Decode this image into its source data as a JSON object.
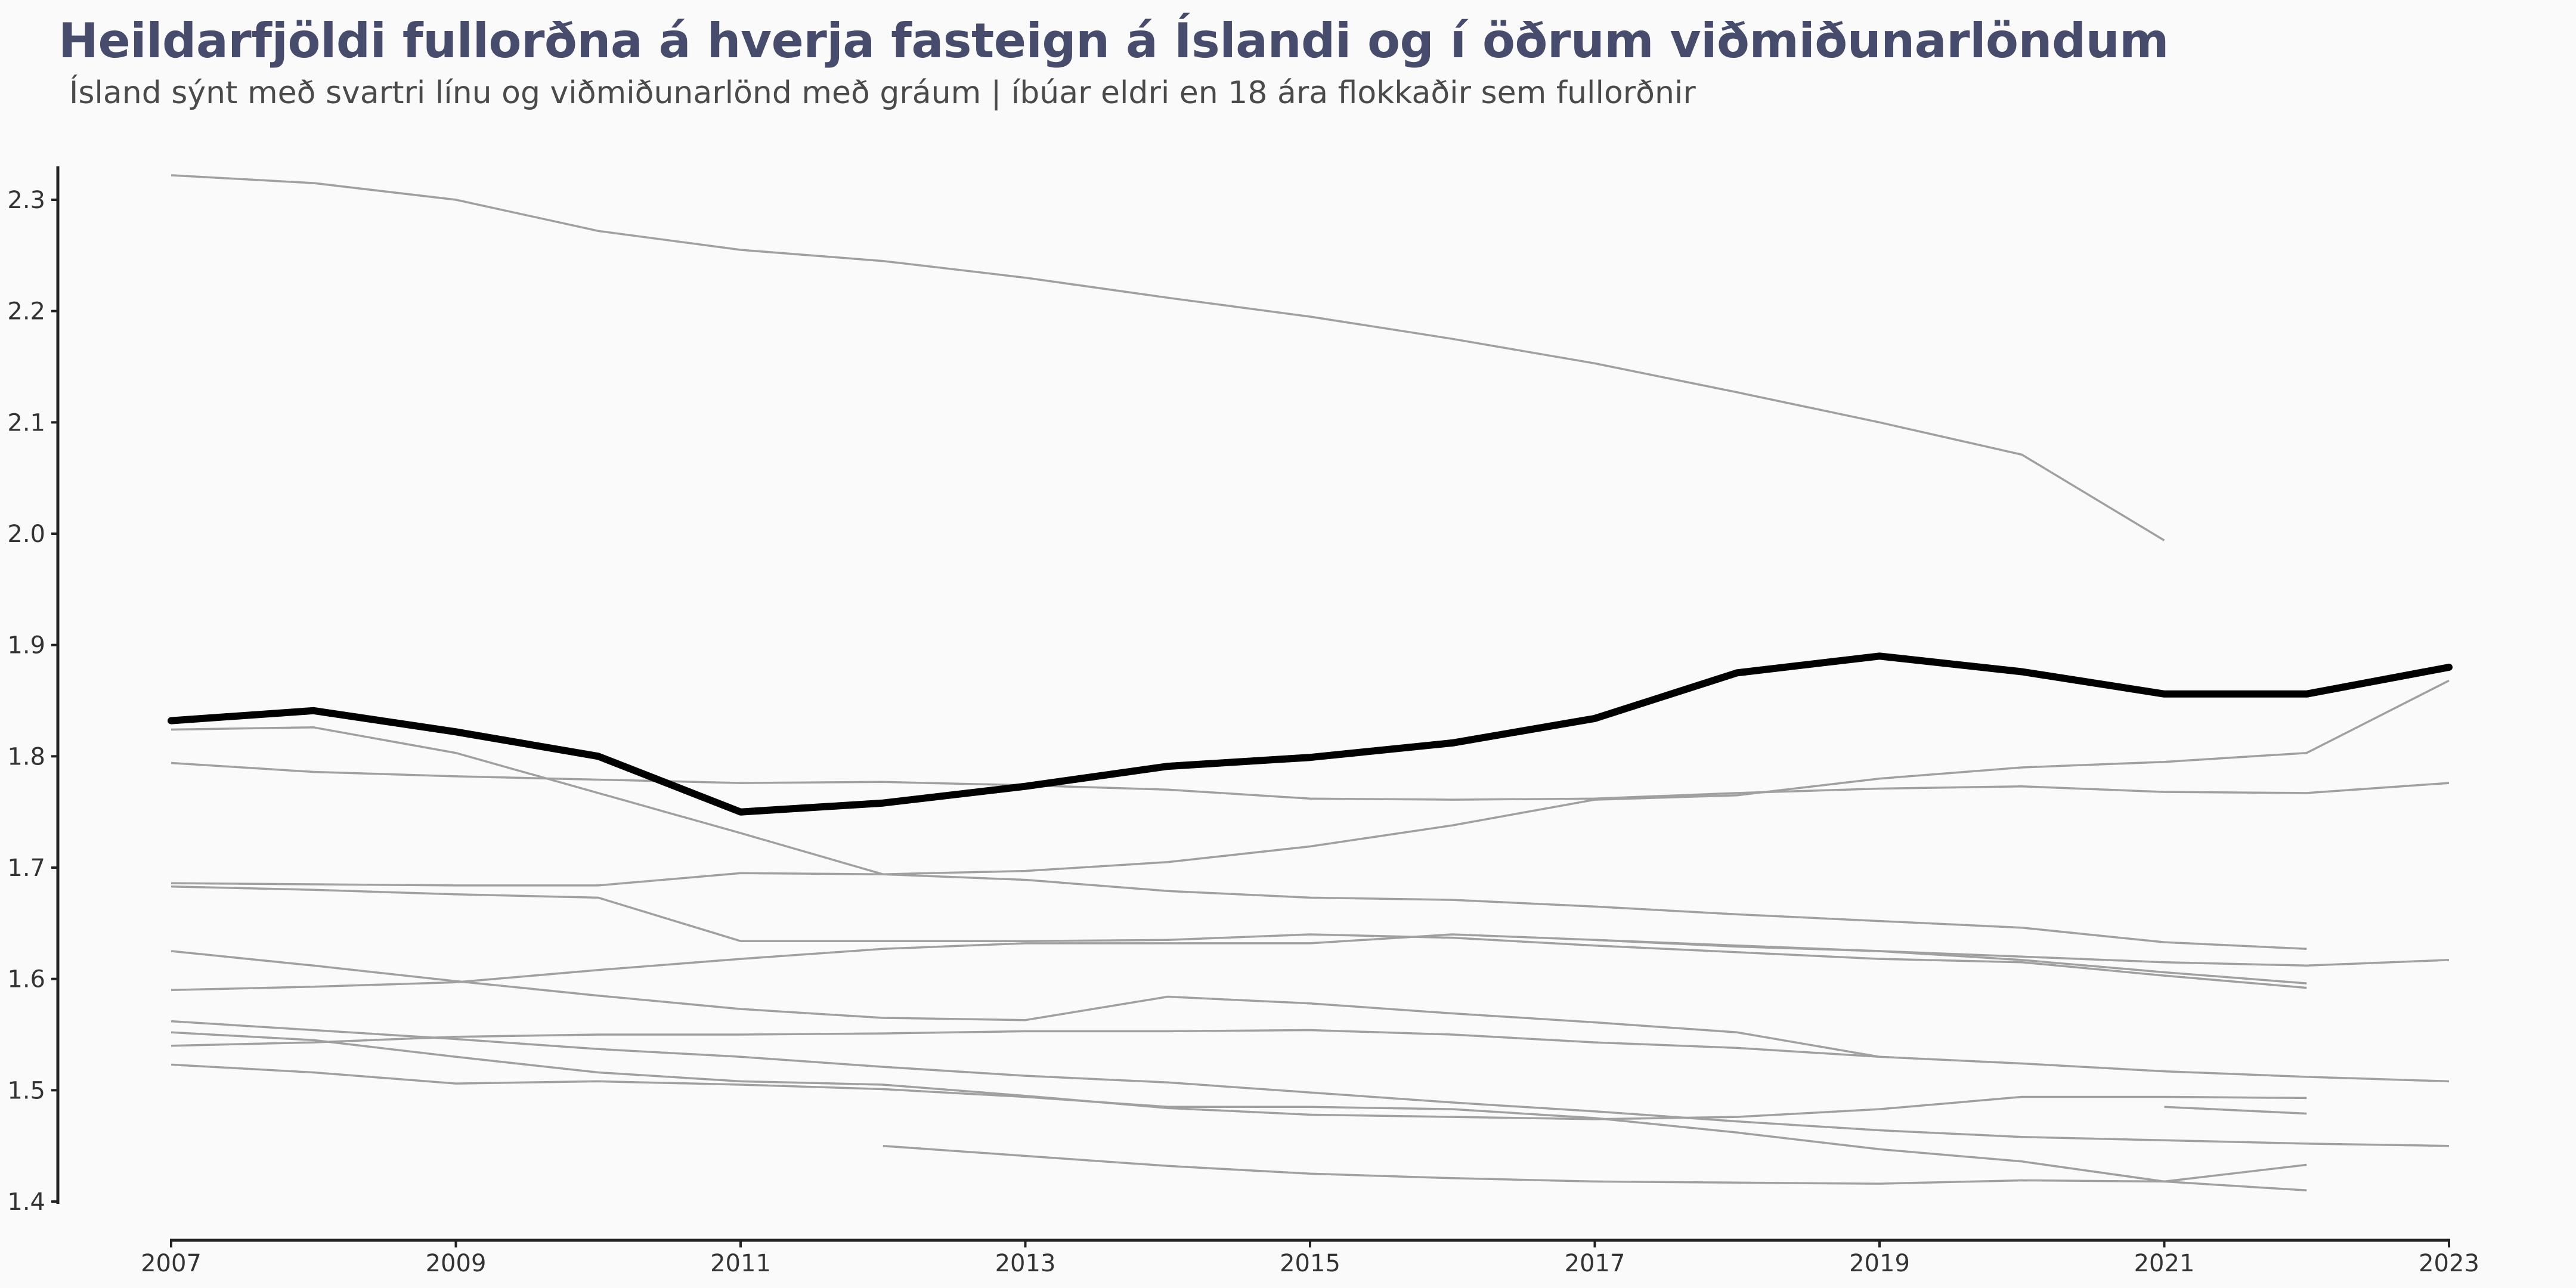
{
  "chart_data": {
    "type": "line",
    "title": "Heildarfjöldi fullorðna á hverja fasteign á Íslandi og í öðrum viðmiðunarlöndum",
    "subtitle": "Ísland sýnt með svartri línu og viðmiðunarlönd með gráum | íbúar eldri en 18 ára flokkaðir sem fullorðnir",
    "xlabel": "",
    "ylabel": "",
    "x_ticks": [
      "2007",
      "2009",
      "2011",
      "2013",
      "2015",
      "2017",
      "2019",
      "2021",
      "2023"
    ],
    "y_ticks": [
      "1.4",
      "1.5",
      "1.6",
      "1.7",
      "1.8",
      "1.9",
      "2.0",
      "2.1",
      "2.2",
      "2.3"
    ],
    "xlim": [
      2007,
      2023
    ],
    "ylim": [
      1.4,
      2.33
    ],
    "grid": false,
    "colors": {
      "highlight": "#000000",
      "comparison": "#a0a0a0",
      "title": "#484c6c"
    },
    "highlight_series": {
      "x": [
        2007,
        2008,
        2009,
        2010,
        2011,
        2012,
        2013,
        2014,
        2015,
        2016,
        2017,
        2018,
        2019,
        2020,
        2021,
        2022,
        2023
      ],
      "values": [
        1.832,
        1.841,
        1.822,
        1.8,
        1.75,
        1.758,
        1.773,
        1.791,
        1.799,
        1.812,
        1.834,
        1.875,
        1.89,
        1.876,
        1.856,
        1.856,
        1.88
      ]
    },
    "series": [
      {
        "x": [
          2007,
          2008,
          2009,
          2010,
          2011,
          2012,
          2013,
          2014,
          2015,
          2016,
          2017,
          2018,
          2019,
          2020,
          2021
        ],
        "values": [
          2.322,
          2.315,
          2.3,
          2.272,
          2.255,
          2.245,
          2.23,
          2.212,
          2.195,
          2.175,
          2.153,
          2.127,
          2.1,
          2.071,
          1.994
        ]
      },
      {
        "x": [
          2007,
          2008,
          2009,
          2010,
          2011,
          2012,
          2013,
          2014,
          2015,
          2016,
          2017,
          2018,
          2019,
          2020,
          2021,
          2022,
          2023
        ],
        "values": [
          1.824,
          1.826,
          1.803,
          1.767,
          1.731,
          1.694,
          1.697,
          1.705,
          1.719,
          1.738,
          1.761,
          1.765,
          1.78,
          1.79,
          1.795,
          1.803,
          1.868
        ]
      },
      {
        "x": [
          2007,
          2008,
          2009,
          2010,
          2011,
          2012,
          2013,
          2014,
          2015,
          2016,
          2017,
          2018,
          2019,
          2020,
          2021,
          2022,
          2023
        ],
        "values": [
          1.794,
          1.786,
          1.782,
          1.779,
          1.776,
          1.777,
          1.774,
          1.77,
          1.762,
          1.761,
          1.762,
          1.767,
          1.771,
          1.773,
          1.768,
          1.767,
          1.776
        ]
      },
      {
        "x": [
          2007,
          2008,
          2009,
          2010,
          2011,
          2012,
          2013,
          2014,
          2015,
          2016,
          2017,
          2018,
          2019,
          2020,
          2021,
          2022
        ],
        "values": [
          1.686,
          1.685,
          1.684,
          1.684,
          1.695,
          1.694,
          1.689,
          1.679,
          1.673,
          1.671,
          1.665,
          1.658,
          1.652,
          1.646,
          1.633,
          1.627
        ]
      },
      {
        "x": [
          2007,
          2008,
          2009,
          2010,
          2011,
          2012,
          2013,
          2014,
          2015,
          2016,
          2017,
          2018,
          2019,
          2020,
          2021,
          2022
        ],
        "values": [
          1.683,
          1.68,
          1.676,
          1.673,
          1.634,
          1.634,
          1.634,
          1.635,
          1.64,
          1.637,
          1.63,
          1.624,
          1.618,
          1.615,
          1.603,
          1.592
        ]
      },
      {
        "x": [
          2007,
          2008,
          2009,
          2010,
          2011,
          2012,
          2013,
          2014,
          2015,
          2016,
          2017,
          2018,
          2019,
          2020,
          2021,
          2022,
          2023
        ],
        "values": [
          1.59,
          1.593,
          1.597,
          1.608,
          1.618,
          1.627,
          1.632,
          1.632,
          1.632,
          1.64,
          1.635,
          1.629,
          1.625,
          1.62,
          1.615,
          1.612,
          1.617
        ]
      },
      {
        "x": [
          2017,
          2018,
          2019,
          2020,
          2021,
          2022
        ],
        "values": [
          1.635,
          1.63,
          1.625,
          1.617,
          1.606,
          1.596
        ]
      },
      {
        "x": [
          2007,
          2008,
          2009,
          2010,
          2011,
          2012,
          2013,
          2014,
          2015,
          2016,
          2017,
          2018,
          2019
        ],
        "values": [
          1.625,
          1.612,
          1.598,
          1.585,
          1.573,
          1.565,
          1.563,
          1.584,
          1.578,
          1.569,
          1.561,
          1.552,
          1.53
        ]
      },
      {
        "x": [
          2007,
          2008,
          2009,
          2010,
          2011,
          2012,
          2013,
          2014,
          2015,
          2016,
          2017,
          2018,
          2019,
          2020,
          2021,
          2022,
          2023
        ],
        "values": [
          1.54,
          1.543,
          1.548,
          1.55,
          1.55,
          1.551,
          1.553,
          1.553,
          1.554,
          1.55,
          1.543,
          1.538,
          1.53,
          1.524,
          1.517,
          1.512,
          1.508
        ]
      },
      {
        "x": [
          2007,
          2008,
          2009,
          2010,
          2011,
          2012,
          2013,
          2014,
          2015,
          2016,
          2017,
          2018,
          2019,
          2020,
          2021,
          2022,
          2023
        ],
        "values": [
          1.562,
          1.554,
          1.546,
          1.537,
          1.53,
          1.521,
          1.513,
          1.507,
          1.498,
          1.489,
          1.481,
          1.472,
          1.464,
          1.458,
          1.455,
          1.452,
          1.45
        ]
      },
      {
        "x": [
          2007,
          2008,
          2009,
          2010,
          2011,
          2012,
          2013,
          2014,
          2015,
          2016,
          2017,
          2018,
          2019,
          2020,
          2021,
          2022
        ],
        "values": [
          1.552,
          1.545,
          1.53,
          1.516,
          1.508,
          1.505,
          1.495,
          1.484,
          1.478,
          1.476,
          1.474,
          1.476,
          1.483,
          1.494,
          1.494,
          1.493
        ]
      },
      {
        "x": [
          2007,
          2008,
          2009,
          2010,
          2011,
          2012,
          2013,
          2014,
          2015,
          2016,
          2017,
          2018,
          2019,
          2020,
          2021,
          2022
        ],
        "values": [
          1.523,
          1.516,
          1.506,
          1.508,
          1.505,
          1.501,
          1.494,
          1.485,
          1.485,
          1.483,
          1.475,
          1.462,
          1.447,
          1.436,
          1.418,
          1.41
        ]
      },
      {
        "x": [
          2021,
          2022
        ],
        "values": [
          1.485,
          1.479
        ]
      },
      {
        "x": [
          2012,
          2013,
          2014,
          2015,
          2016,
          2017,
          2018,
          2019,
          2020,
          2021,
          2022
        ],
        "values": [
          1.45,
          1.441,
          1.432,
          1.425,
          1.421,
          1.418,
          1.417,
          1.416,
          1.419,
          1.418,
          1.433
        ]
      }
    ]
  }
}
